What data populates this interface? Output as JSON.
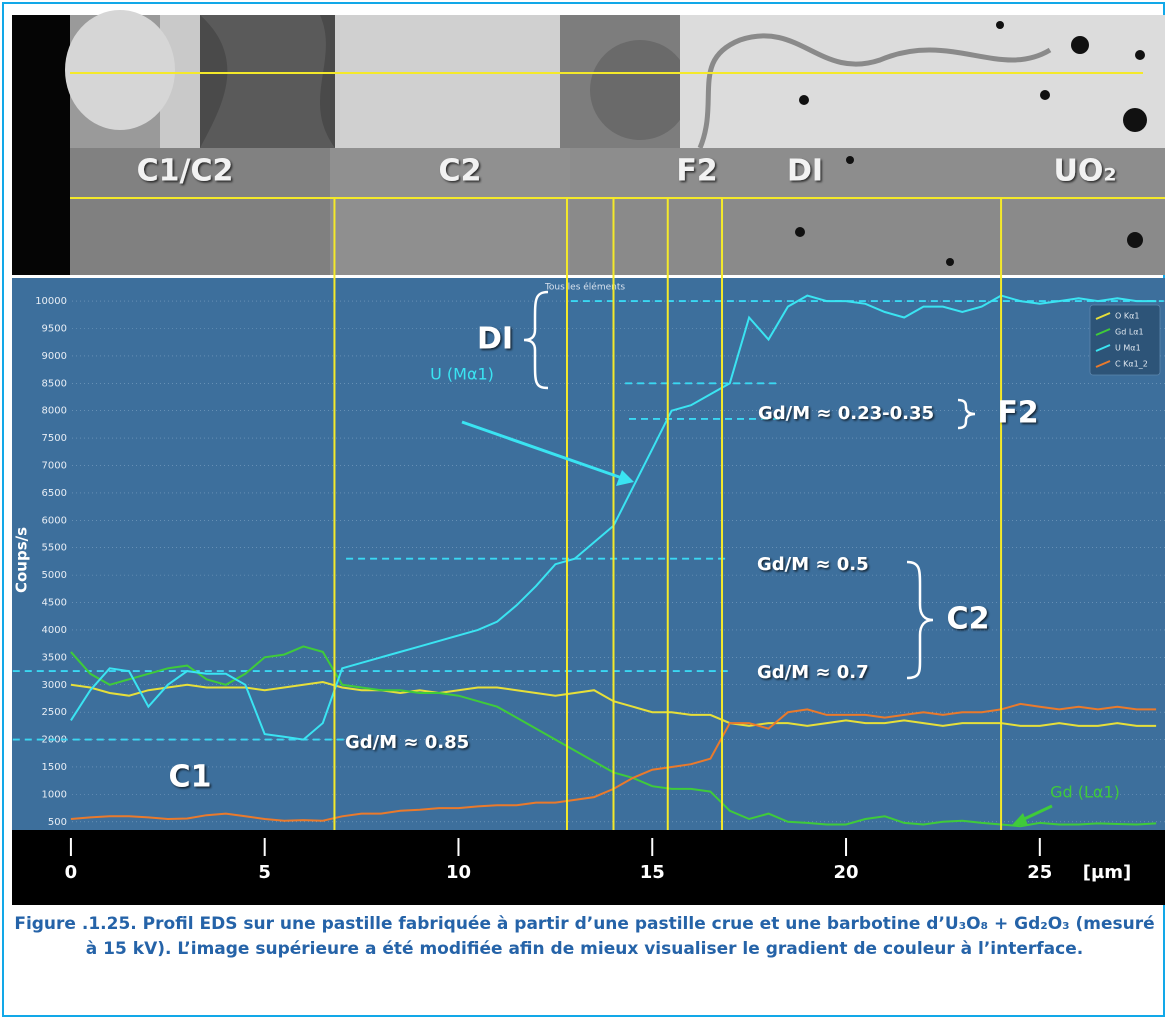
{
  "chart_data": {
    "type": "line",
    "title": "Tous les éléments",
    "y_label": "Coups/s",
    "x_label": "[µm]",
    "caption": "Figure .1.25. Profil EDS sur une pastille fabriquée à partir d’une pastille crue et une barbotine d’U₃O₈ + Gd₂O₃ (mesuré à 15 kV). L’image supérieure a été modifiée afin de mieux visualiser le gradient de couleur à l’interface.",
    "image_labels": [
      "C1/C2",
      "C2",
      "F2",
      "DI",
      "UO₂"
    ],
    "annotations": [
      "DI",
      "U (Mα1)",
      "Gd/M ≈ 0.23-0.35",
      "F2",
      "Gd/M ≈ 0.5",
      "Gd/M ≈ 0.7",
      "C2",
      "Gd/M ≈ 0.85",
      "C1",
      "Gd (Lα1)"
    ],
    "x": [
      0,
      0.5,
      1,
      1.5,
      2,
      2.5,
      3,
      3.5,
      4,
      4.5,
      5,
      5.5,
      6,
      6.5,
      7,
      7.5,
      8,
      8.5,
      9,
      9.5,
      10,
      10.5,
      11,
      11.5,
      12,
      12.5,
      13,
      13.5,
      14,
      14.5,
      15,
      15.5,
      16,
      16.5,
      17,
      17.5,
      18,
      18.5,
      19,
      19.5,
      20,
      20.5,
      21,
      21.5,
      22,
      22.5,
      23,
      23.5,
      24,
      24.5,
      25,
      25.5,
      26,
      26.5,
      27,
      27.5,
      28
    ],
    "series": [
      {
        "name": "O Kα1",
        "color": "#e6df3a",
        "values": [
          3000,
          2950,
          2850,
          2800,
          2900,
          2950,
          3000,
          2950,
          2950,
          2950,
          2900,
          2950,
          3000,
          3050,
          2950,
          2900,
          2900,
          2850,
          2900,
          2850,
          2900,
          2950,
          2950,
          2900,
          2850,
          2800,
          2850,
          2900,
          2700,
          2600,
          2500,
          2500,
          2450,
          2450,
          2300,
          2250,
          2300,
          2300,
          2250,
          2300,
          2350,
          2300,
          2300,
          2350,
          2300,
          2250,
          2300,
          2300,
          2300,
          2250,
          2250,
          2300,
          2250,
          2250,
          2300,
          2250,
          2250
        ]
      },
      {
        "name": "Gd Lα1",
        "color": "#3fcb3a",
        "values": [
          3600,
          3200,
          3000,
          3100,
          3200,
          3300,
          3350,
          3100,
          3000,
          3200,
          3500,
          3550,
          3700,
          3600,
          3000,
          2950,
          2900,
          2900,
          2850,
          2850,
          2800,
          2700,
          2600,
          2400,
          2200,
          2000,
          1800,
          1600,
          1400,
          1300,
          1150,
          1100,
          1100,
          1050,
          700,
          550,
          650,
          500,
          480,
          450,
          450,
          550,
          600,
          480,
          450,
          500,
          520,
          480,
          450,
          420,
          480,
          450,
          450,
          470,
          460,
          450,
          470
        ]
      },
      {
        "name": "U Mα1",
        "color": "#3ae4f2",
        "values": [
          2350,
          2900,
          3300,
          3250,
          2600,
          3000,
          3250,
          3200,
          3200,
          3000,
          2100,
          2050,
          2000,
          2300,
          3300,
          3400,
          3500,
          3600,
          3700,
          3800,
          3900,
          4000,
          4150,
          4450,
          4800,
          5200,
          5300,
          5600,
          5900,
          6600,
          7300,
          8000,
          8100,
          8300,
          8500,
          9700,
          9300,
          9900,
          10100,
          10000,
          10000,
          9950,
          9800,
          9700,
          9900,
          9900,
          9800,
          9900,
          10100,
          10000,
          9950,
          10000,
          10050,
          10000,
          10050,
          10000,
          10000
        ]
      },
      {
        "name": "C Kα1_2",
        "color": "#ea7a2c",
        "values": [
          550,
          580,
          600,
          600,
          580,
          550,
          560,
          620,
          650,
          600,
          550,
          520,
          530,
          520,
          600,
          650,
          650,
          700,
          720,
          750,
          750,
          780,
          800,
          800,
          850,
          850,
          900,
          950,
          1100,
          1300,
          1450,
          1500,
          1550,
          1650,
          2300,
          2300,
          2200,
          2500,
          2550,
          2450,
          2450,
          2450,
          2400,
          2450,
          2500,
          2450,
          2500,
          2500,
          2550,
          2650,
          2600,
          2550,
          2600,
          2550,
          2600,
          2550,
          2550
        ]
      }
    ],
    "vlines": [
      6.8,
      12.8,
      14.0,
      15.4,
      16.8,
      24.0
    ],
    "guides": [
      {
        "y": 10000,
        "x": [
          12.9,
          28.2
        ]
      },
      {
        "y": 8500,
        "x": [
          14.3,
          18.2
        ]
      },
      {
        "y": 7850,
        "x": [
          14.4,
          18.3
        ]
      },
      {
        "y": 5300,
        "x": [
          7.1,
          17.0
        ]
      },
      {
        "y": 3250,
        "x": [
          -1.5,
          17.0
        ]
      },
      {
        "y": 2000,
        "x": [
          -1.5,
          7.1
        ]
      }
    ],
    "xlim": [
      -1.52,
      28.23
    ],
    "ylim": [
      350,
      10330
    ],
    "xticks": [
      0,
      5,
      10,
      15,
      20,
      25
    ],
    "yticks": [
      500,
      1000,
      1500,
      2000,
      2500,
      3000,
      3500,
      4000,
      4500,
      5000,
      5500,
      6000,
      6500,
      7000,
      7500,
      8000,
      8500,
      9000,
      9500,
      10000
    ],
    "grid": true,
    "legend": "top-right"
  }
}
